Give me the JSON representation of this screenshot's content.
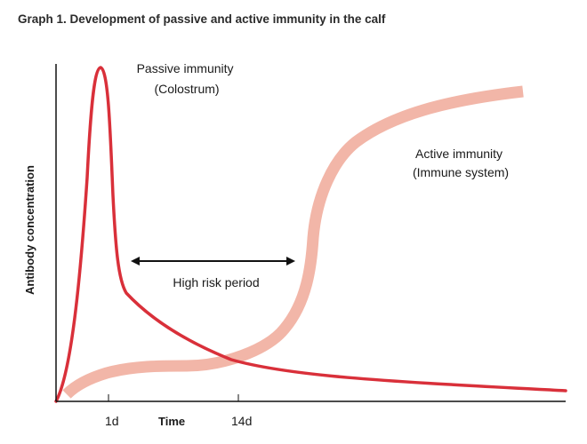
{
  "title": "Graph 1. Development of passive and active immunity in the calf",
  "chart_data": {
    "type": "line",
    "xlabel": "Time",
    "ylabel": "Antibody concentration",
    "x_ticks": [
      "1d",
      "14d"
    ],
    "series": [
      {
        "name": "Passive immunity (Colostrum)",
        "label_lines": [
          "Passive immunity",
          "(Colostrum)"
        ],
        "color": "#d9303a"
      },
      {
        "name": "Active immunity (Immune system)",
        "label_lines": [
          "Active immunity",
          "(Immune system)"
        ],
        "color": "#f2b6a8"
      }
    ],
    "annotations": [
      {
        "text": "High risk period",
        "type": "double-arrow"
      }
    ],
    "grid": false
  }
}
